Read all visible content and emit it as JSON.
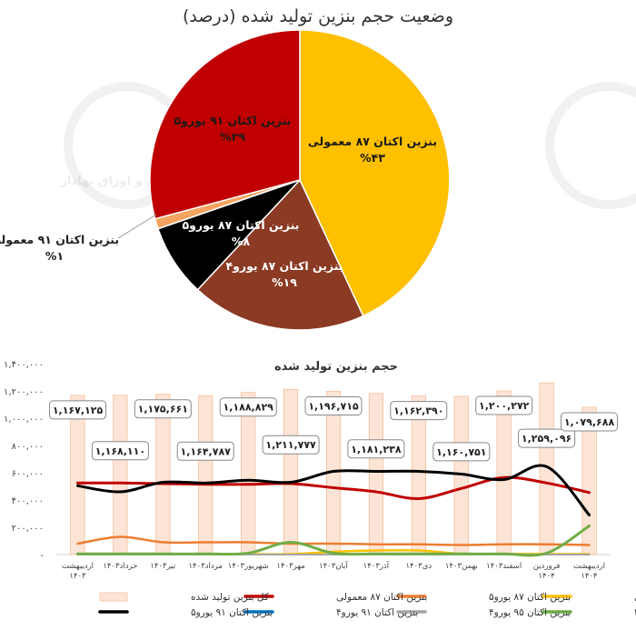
{
  "pie": {
    "title": "وضعیت حجم بنزین تولید شده (درصد)",
    "slices": [
      {
        "label": "بنزین اکتان ۸۷ معمولی",
        "pct_text": "%۴۳",
        "value": 43,
        "color": "#FFC000",
        "text_color": "#1a1a1a"
      },
      {
        "label": "بنزین اکتان ۸۷ یورو۴",
        "pct_text": "%۱۹",
        "value": 19,
        "color": "#8B3A24",
        "text_color": "#ffffff"
      },
      {
        "label": "بنزین اکتان ۸۷ یورو۵",
        "pct_text": "%۸",
        "value": 8,
        "color": "#000000",
        "text_color": "#ffffff"
      },
      {
        "label": "بنزین اکتان ۹۱ معمولی",
        "pct_text": "%۱",
        "value": 1,
        "color": "#F4A460",
        "text_color": "#1a1a1a"
      },
      {
        "label": "بنزین اکتان ۹۱ یورو۵",
        "pct_text": "%۲۹",
        "value": 29,
        "color": "#C00000",
        "text_color": "#1a1a1a"
      }
    ]
  },
  "chart_data": {
    "type": "bar",
    "title": "حجم بنزین تولید شده",
    "categories": [
      "اردیبهشت ۱۴۰۳",
      "خرداد ۱۴۰۳",
      "تیر ۱۴۰۳",
      "مرداد ۱۴۰۳",
      "شهریور ۱۴۰۳",
      "مهر ۱۴۰۳",
      "آبان ۱۴۰۳",
      "آذر ۱۴۰۳",
      "دی ۱۴۰۳",
      "بهمن ۱۴۰۳",
      "اسفند ۱۴۰۳",
      "فروردین ۱۴۰۴",
      "اردیبهشت ۱۴۰۴"
    ],
    "category_lines": [
      [
        "اردیبهشت",
        "۱۴۰۳"
      ],
      [
        "خرداد۱۴۰۳"
      ],
      [
        "تیر۱۴۰۳"
      ],
      [
        "مرداد۱۴۰۳"
      ],
      [
        "شهریور۱۴۰۳"
      ],
      [
        "مهر۱۴۰۳"
      ],
      [
        "آبان۱۴۰۳"
      ],
      [
        "آذر۱۴۰۳"
      ],
      [
        "دی۱۴۰۳"
      ],
      [
        "بهمن۱۴۰۳"
      ],
      [
        "اسفند۱۴۰۳"
      ],
      [
        "فروردین",
        "۱۴۰۴"
      ],
      [
        "اردیبهشت",
        "۱۴۰۴"
      ]
    ],
    "ylim": [
      0,
      1400000
    ],
    "yticks": [
      {
        "v": 0,
        "label": "-"
      },
      {
        "v": 200000,
        "label": "۲۰۰,۰۰۰"
      },
      {
        "v": 400000,
        "label": "۴۰۰,۰۰۰"
      },
      {
        "v": 600000,
        "label": "۶۰۰,۰۰۰"
      },
      {
        "v": 800000,
        "label": "۸۰۰,۰۰۰"
      },
      {
        "v": 1000000,
        "label": "۱,۰۰۰,۰۰۰"
      },
      {
        "v": 1200000,
        "label": "۱,۲۰۰,۰۰۰"
      },
      {
        "v": 1400000,
        "label": "۱,۴۰۰,۰۰۰"
      }
    ],
    "bar_series": {
      "name": "کل بنزین تولید شده",
      "color": "#FCE4D6",
      "edge": "#F4B183",
      "values": [
        1167125,
        1168110,
        1175661,
        1164787,
        1188829,
        1211777,
        1196715,
        1181238,
        1162390,
        1160751,
        1200272,
        1259096,
        1079688
      ],
      "labels": [
        "۱,۱۶۷,۱۲۵",
        "۱,۱۶۸,۱۱۰",
        "۱,۱۷۵,۶۶۱",
        "۱,۱۶۴,۷۸۷",
        "۱,۱۸۸,۸۲۹",
        "۱,۲۱۱,۷۷۷",
        "۱,۱۹۶,۷۱۵",
        "۱,۱۸۱,۲۳۸",
        "۱,۱۶۲,۳۹۰",
        "۱,۱۶۰,۷۵۱",
        "۱,۲۰۰,۲۷۲",
        "۱,۲۵۹,۰۹۶",
        "۱,۰۷۹,۶۸۸"
      ],
      "label_pos": [
        "high",
        "low",
        "high",
        "low",
        "high",
        "low",
        "high",
        "low",
        "high",
        "low",
        "high",
        "low",
        "high"
      ]
    },
    "series": [
      {
        "name": "بنزین اکتان ۸۷ معمولی",
        "color": "#C00000",
        "width": 3,
        "values": [
          525000,
          525000,
          520000,
          515000,
          515000,
          520000,
          490000,
          460000,
          410000,
          485000,
          565000,
          525000,
          455000
        ]
      },
      {
        "name": "بنزین اکتان ۸۷ یورو۵",
        "color": "#ED7D31",
        "width": 2.5,
        "values": [
          80000,
          130000,
          90000,
          90000,
          90000,
          80000,
          80000,
          75000,
          75000,
          70000,
          75000,
          75000,
          70000
        ]
      },
      {
        "name": "بنزین اکتان ۹۱ معمولی",
        "color": "#FFC000",
        "width": 2.5,
        "values": [
          3000,
          3000,
          3000,
          3000,
          3000,
          3000,
          20000,
          30000,
          30000,
          5000,
          5000,
          3000,
          3000
        ]
      },
      {
        "name": "بنزین اکتان ۹۱ یورو۵",
        "color": "#000000",
        "width": 3,
        "values": [
          505000,
          460000,
          530000,
          525000,
          545000,
          530000,
          610000,
          610000,
          610000,
          590000,
          550000,
          645000,
          290000
        ]
      },
      {
        "name": "بنزین اکتان ۹۱ یورو۴",
        "color": "#0070C0",
        "width": 2,
        "values": [
          0,
          0,
          0,
          0,
          0,
          0,
          0,
          0,
          0,
          0,
          0,
          0,
          0
        ]
      },
      {
        "name": "بنزین اکتان ۹۵ یورو۴",
        "color": "#A5A5A5",
        "width": 2,
        "values": [
          0,
          0,
          0,
          0,
          0,
          0,
          0,
          0,
          0,
          0,
          0,
          0,
          0
        ]
      },
      {
        "name": "بنزین اکتان ۸۷ یورو۴",
        "color": "#70AD47",
        "width": 3,
        "values": [
          5000,
          5000,
          5000,
          5000,
          10000,
          90000,
          10000,
          5000,
          5000,
          5000,
          5000,
          10000,
          210000
        ]
      }
    ],
    "legend_rows": [
      [
        {
          "name": "بنزین اکتان ۹۱ معمولی",
          "color": "#FFC000",
          "kind": "line"
        },
        {
          "name": "بنزین اکتان ۸۷ یورو۵",
          "color": "#ED7D31",
          "kind": "line"
        },
        {
          "name": "بنزین اکتان ۸۷ معمولی",
          "color": "#C00000",
          "kind": "line"
        },
        {
          "name": "کل بنزین تولید شده",
          "color": "#FCE4D6",
          "kind": "box"
        }
      ],
      [
        {
          "name": "بنزین اکتان ۸۷ یورو۴",
          "color": "#70AD47",
          "kind": "line"
        },
        {
          "name": "بنزین اکتان ۹۵ یورو۴",
          "color": "#A5A5A5",
          "kind": "line"
        },
        {
          "name": "بنزین اکتان ۹۱ یورو۴",
          "color": "#0070C0",
          "kind": "line"
        },
        {
          "name": "بنزین اکتان ۹۱ یورو۵",
          "color": "#000000",
          "kind": "line"
        }
      ]
    ],
    "legend_position": "bottom",
    "grid": false
  },
  "watermark": {
    "text": "سازمان بورس و اوراق بهادار",
    "subtext": "SECURITIES & EXCHANGE ORGANIZATION"
  }
}
